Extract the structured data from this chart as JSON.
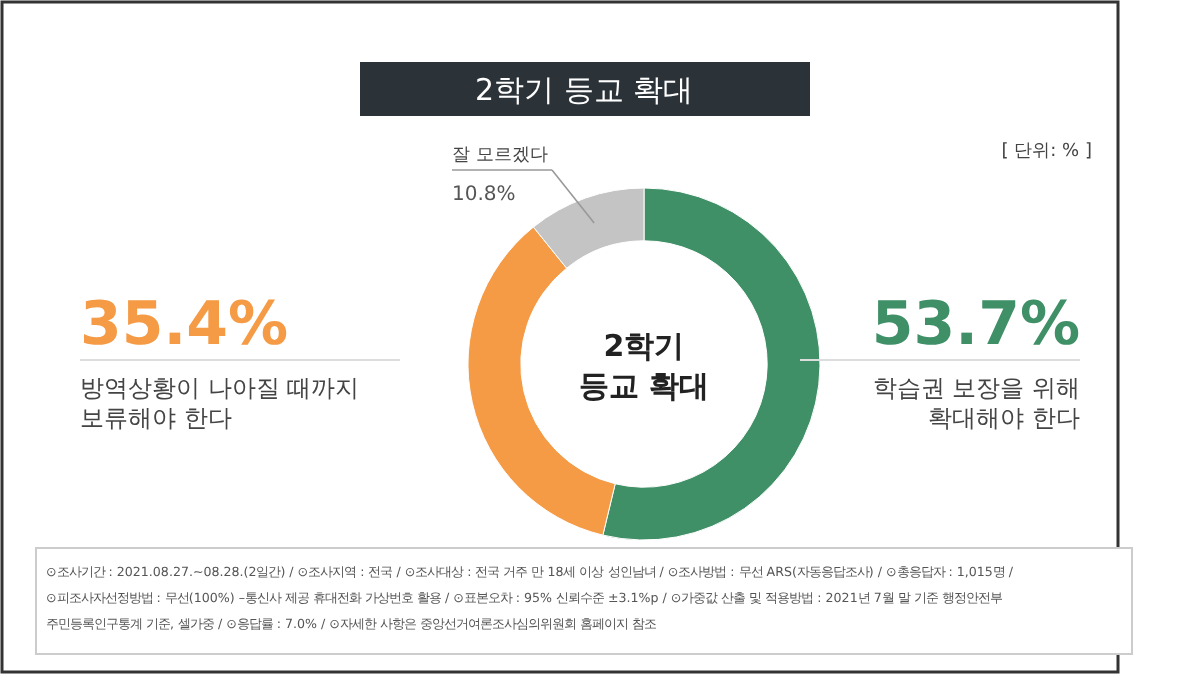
{
  "chart_data": {
    "type": "donut",
    "title": "2학기 등교 확대",
    "categories": [
      "학습권 보장을 위해\n확대해야 한다",
      "방역상황이 나아질 때까지\n보류해야 한다",
      "잘 모르겠다"
    ],
    "values": [
      53.7,
      35.4,
      10.8
    ],
    "colors": [
      "#3f8f67",
      "#f59a45",
      "#c4c4c4"
    ],
    "value_labels": [
      "53.7%",
      "35.4%",
      "10.8%"
    ],
    "annotations": [
      "2학기\n등교 확대",
      "[ 단위: % ]",
      "⊙조사기간 : 2021.08.27.~08.28.(2일간)  /  ⊙조사지역 : 전국  /  ⊙조사대상 : 전국 거주 만 18세 이상 성인남녀  /  ⊙조사방법 : 무선 ARS(자동응답조사)  /  ⊙총응답자 : 1,015명  /",
      "⊙피조사자선정방법 : 무선(100%) –통신사 제공 휴대전화 가상번호 활용  /  ⊙표본오차 : 95% 신뢰수준 ±3.1%p  /  ⊙가중값 산출 및 적용방법 : 2021년 7월 말 기준 행정안전부",
      "주민등록인구통계 기준, 셀가중  /  ⊙응답률 : 7.0%  /  ⊙자세한 사항은 중앙선거여론조사심의위원회 홈페이지 참조"
    ]
  }
}
